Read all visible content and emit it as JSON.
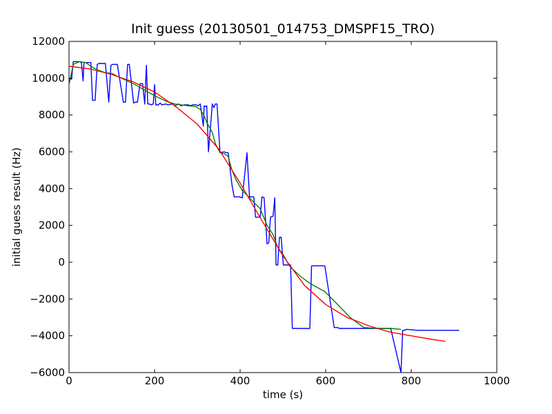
{
  "chart_data": {
    "type": "line",
    "title": "Init guess (20130501_014753_DMSPF15_TRO)",
    "xlabel": "time (s)",
    "ylabel": "initial guess result (Hz)",
    "xlim": [
      0,
      1000
    ],
    "ylim": [
      -6000,
      12000
    ],
    "grid": false,
    "legend": "none",
    "xticks": [
      0,
      200,
      400,
      600,
      800,
      1000
    ],
    "yticks": [
      -6000,
      -4000,
      -2000,
      0,
      2000,
      4000,
      6000,
      8000,
      10000,
      12000
    ],
    "xtick_labels": [
      "0",
      "200",
      "400",
      "600",
      "800",
      "1000"
    ],
    "ytick_labels": [
      "−6000",
      "−4000",
      "−2000",
      "0",
      "2000",
      "4000",
      "6000",
      "8000",
      "10000",
      "12000"
    ],
    "series": [
      {
        "color": "#0000ff",
        "x": [
          0,
          6,
          10,
          24,
          29,
          33,
          35,
          39,
          51,
          55,
          61,
          66,
          70,
          85,
          93,
          98,
          102,
          113,
          127,
          132,
          137,
          141,
          151,
          155,
          160,
          166,
          172,
          177,
          181,
          184,
          188,
          192,
          197,
          200,
          203,
          209,
          213,
          217,
          227,
          231,
          242,
          247,
          256,
          262,
          270,
          279,
          284,
          289,
          297,
          302,
          307,
          314,
          316,
          320,
          322,
          326,
          335,
          339,
          342,
          346,
          353,
          363,
          367,
          372,
          381,
          386,
          390,
          398,
          405,
          416,
          422,
          430,
          432,
          436,
          447,
          451,
          456,
          463,
          467,
          471,
          477,
          481,
          484,
          488,
          492,
          496,
          501,
          506,
          509,
          515,
          518,
          522,
          540,
          555,
          563,
          567,
          598,
          620,
          624,
          628,
          632,
          639,
          657,
          689,
          722,
          752,
          776,
          780,
          783,
          790,
          813,
          829,
          834,
          846,
          870,
          912
        ],
        "y": [
          9950,
          9950,
          10900,
          10900,
          10850,
          9850,
          10850,
          10850,
          10850,
          8800,
          8800,
          10750,
          10800,
          10800,
          8700,
          10700,
          10750,
          10750,
          8700,
          8700,
          10750,
          10750,
          8650,
          8700,
          8700,
          9700,
          9700,
          8600,
          10700,
          8600,
          8600,
          8550,
          8600,
          9650,
          8550,
          8550,
          8650,
          8550,
          8600,
          8550,
          8600,
          8500,
          8600,
          8500,
          8550,
          8550,
          8500,
          8550,
          8550,
          8500,
          8600,
          7400,
          8500,
          8450,
          8500,
          6000,
          8600,
          8400,
          8600,
          8600,
          5950,
          6000,
          5950,
          5950,
          4200,
          3550,
          3550,
          3550,
          3500,
          5950,
          3550,
          3550,
          3550,
          2450,
          2450,
          3550,
          3500,
          1000,
          1050,
          2450,
          2500,
          3500,
          -150,
          -150,
          1350,
          1350,
          -150,
          -150,
          -150,
          -150,
          -150,
          -3600,
          -3600,
          -3600,
          -3600,
          -200,
          -200,
          -3550,
          -3550,
          -3550,
          -3600,
          -3600,
          -3600,
          -3600,
          -3600,
          -3600,
          -6000,
          -3700,
          -3700,
          -3650,
          -3700,
          -3700,
          -3700,
          -3700,
          -3700,
          -3700
        ]
      },
      {
        "color": "#008000",
        "x": [
          0,
          10,
          24,
          39,
          51,
          66,
          85,
          102,
          113,
          127,
          141,
          155,
          166,
          177,
          192,
          209,
          227,
          247,
          262,
          279,
          297,
          307,
          316,
          322,
          335,
          342,
          353,
          363,
          372,
          381,
          390,
          405,
          416,
          430,
          447,
          463,
          477,
          488,
          501,
          515,
          540,
          563,
          598,
          628,
          657,
          689,
          722,
          752,
          776
        ],
        "y": [
          9650,
          10750,
          10900,
          10850,
          10650,
          10450,
          10300,
          10250,
          10100,
          9950,
          9800,
          9650,
          9500,
          9350,
          9150,
          8950,
          8750,
          8600,
          8550,
          8500,
          8450,
          8300,
          7950,
          7600,
          7050,
          6450,
          5950,
          5900,
          5750,
          5000,
          4500,
          3900,
          3650,
          3300,
          2900,
          2000,
          1500,
          800,
          400,
          -200,
          -750,
          -1150,
          -1600,
          -2300,
          -3000,
          -3550,
          -3600,
          -3600,
          -3650
        ]
      },
      {
        "color": "#ff0000",
        "x": [
          0,
          50,
          100,
          150,
          200,
          250,
          300,
          350,
          400,
          450,
          500,
          550,
          600,
          650,
          700,
          750,
          800,
          850,
          880
        ],
        "y": [
          10650,
          10500,
          10200,
          9800,
          9250,
          8450,
          7500,
          6150,
          4300,
          2300,
          350,
          -1250,
          -2300,
          -3000,
          -3450,
          -3800,
          -4000,
          -4200,
          -4300
        ]
      }
    ]
  }
}
